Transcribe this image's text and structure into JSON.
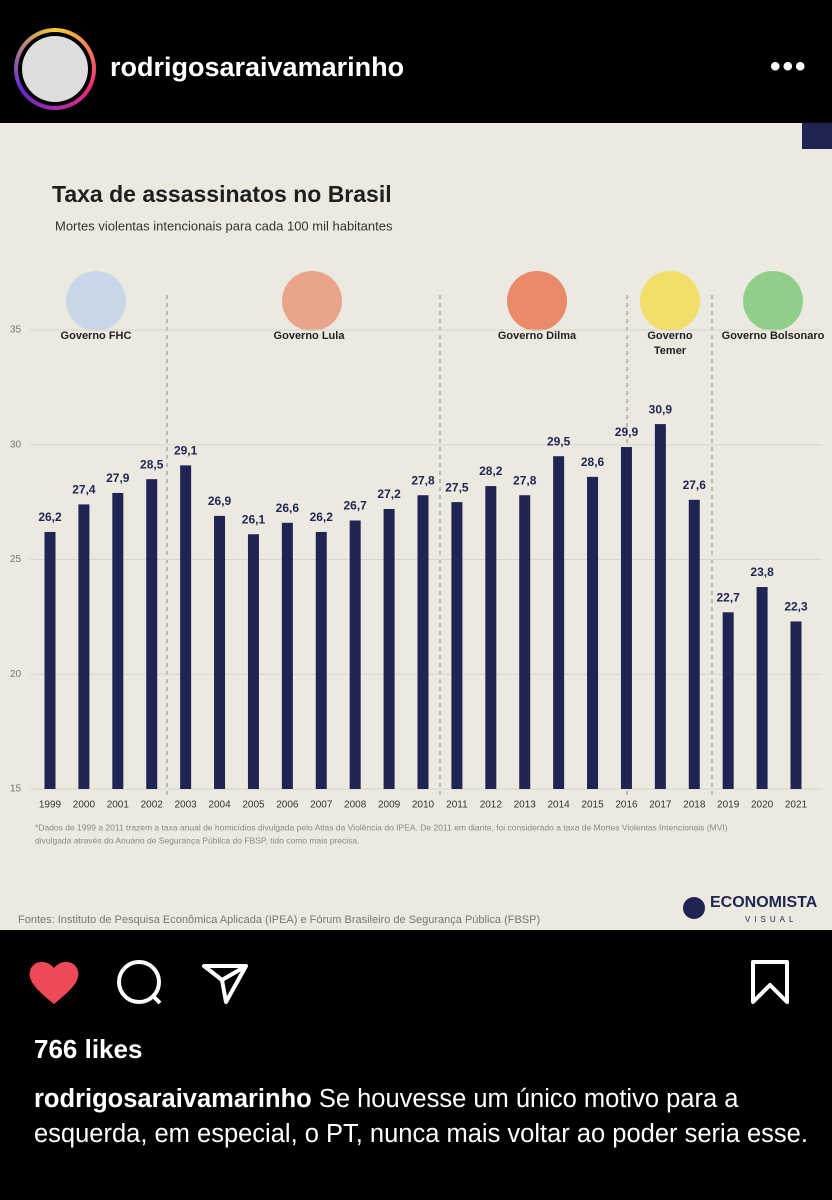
{
  "post": {
    "username": "rodrigosaraivamarinho",
    "likes": "766 likes",
    "caption_username": "rodrigosaraivamarinho",
    "caption": "Se houvesse um único motivo para a esquerda, em especial, o PT, nunca mais voltar ao poder seria esse."
  },
  "chart_data": {
    "type": "bar",
    "title": "Taxa de assassinatos no Brasil",
    "subtitle": "Mortes violentas intencionais para cada 100 mil habitantes",
    "categories": [
      "1999",
      "2000",
      "2001",
      "2002",
      "2003",
      "2004",
      "2005",
      "2006",
      "2007",
      "2008",
      "2009",
      "2010",
      "2011",
      "2012",
      "2013",
      "2014",
      "2015",
      "2016",
      "2017",
      "2018",
      "2019",
      "2020",
      "2021"
    ],
    "values": [
      26.2,
      27.4,
      27.9,
      28.5,
      29.1,
      26.9,
      26.1,
      26.6,
      26.2,
      26.7,
      27.2,
      27.8,
      27.5,
      28.2,
      27.8,
      29.5,
      28.6,
      29.9,
      30.9,
      27.6,
      22.7,
      23.8,
      22.3
    ],
    "value_labels": [
      "26,2",
      "27,4",
      "27,9",
      "28,5",
      "29,1",
      "26,9",
      "26,1",
      "26,6",
      "26,2",
      "26,7",
      "27,2",
      "27,8",
      "27,5",
      "28,2",
      "27,8",
      "29,5",
      "28,6",
      "29,9",
      "30,9",
      "27,6",
      "22,7",
      "23,8",
      "22,3"
    ],
    "color": "#1f2452",
    "ylim": [
      15,
      35
    ],
    "yticks": [
      15,
      20,
      25,
      30,
      35
    ],
    "grid": true,
    "governments": [
      "Governo FHC",
      "Governo Lula",
      "Governo Dilma",
      [
        "Governo",
        "Temer"
      ],
      "Governo Bolsonaro"
    ],
    "footnote": [
      "*Dados de 1999 a 2011 trazem a taxa anual de homicídios divulgada pelo Atlas da Violência do IPEA. De 2011 em diante, foi considerado a taxa de Mortes Violentas Intencionais (MVI)",
      "divulgada através do Anuário de Segurança Pública do FBSP, tido como mais precisa."
    ],
    "source": "Fontes: Instituto de Pesquisa Econômica Aplicada (IPEA) e  Fórum Brasileiro de Segurança Pública (FBSP)",
    "logo": [
      "ECONOMISTA",
      "VISUAL"
    ]
  }
}
